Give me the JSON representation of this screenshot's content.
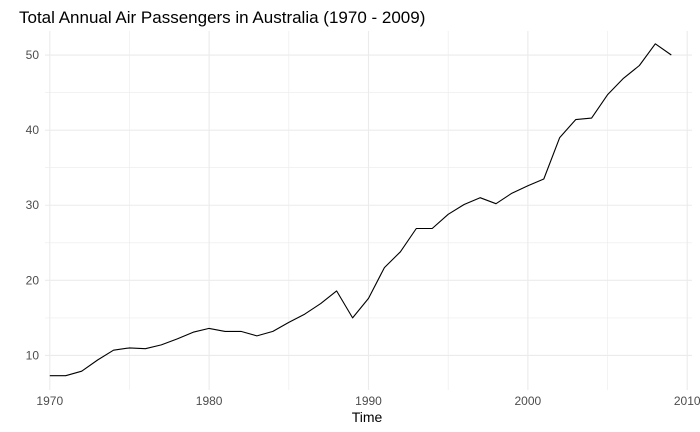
{
  "chart_data": {
    "type": "line",
    "title": "Total Annual Air Passengers in Australia (1970 - 2009)",
    "xlabel": "Time",
    "ylabel": "",
    "xlim": [
      1969.7,
      2010.3
    ],
    "ylim": [
      5.4,
      53.2
    ],
    "x_ticks": [
      1970,
      1980,
      1990,
      2000,
      2010
    ],
    "x_minor": [
      1975,
      1985,
      1995,
      2005
    ],
    "y_ticks": [
      10,
      20,
      30,
      40,
      50
    ],
    "y_minor": [
      15,
      25,
      35,
      45
    ],
    "grid": true,
    "line_color": "#000000",
    "grid_color": "#ebebeb",
    "series": [
      {
        "x": [
          1970,
          1971,
          1972,
          1973,
          1974,
          1975,
          1976,
          1977,
          1978,
          1979,
          1980,
          1981,
          1982,
          1983,
          1984,
          1985,
          1986,
          1987,
          1988,
          1989,
          1990,
          1991,
          1992,
          1993,
          1994,
          1995,
          1996,
          1997,
          1998,
          1999,
          2000,
          2001,
          2002,
          2003,
          2004,
          2005,
          2006,
          2007,
          2008,
          2009
        ],
        "values": [
          7.3,
          7.3,
          7.9,
          9.4,
          10.7,
          11.0,
          10.9,
          11.4,
          12.2,
          13.1,
          13.6,
          13.2,
          13.2,
          12.6,
          13.2,
          14.4,
          15.5,
          16.9,
          18.6,
          15.0,
          17.6,
          21.7,
          23.8,
          26.9,
          26.9,
          28.8,
          30.1,
          31.0,
          30.2,
          31.6,
          32.6,
          33.5,
          39.0,
          41.4,
          41.6,
          44.7,
          46.9,
          48.6,
          51.5,
          50.0
        ]
      }
    ]
  }
}
